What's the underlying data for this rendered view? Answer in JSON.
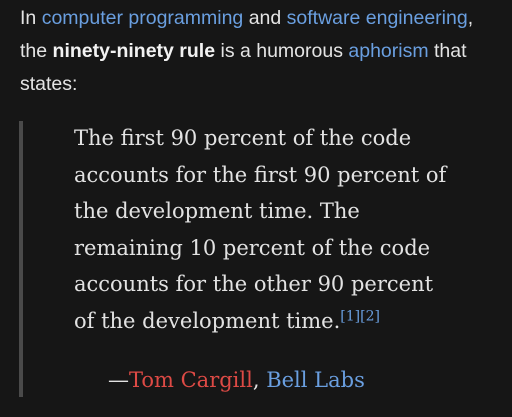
{
  "intro": {
    "t1": "In ",
    "link_programming": "computer programming",
    "t2": " and ",
    "link_software": "software engineering",
    "t3": ",",
    "t4": "the ",
    "bold_rule": "ninety-ninety rule",
    "t5": " is a humorous ",
    "link_aphorism": "aphorism",
    "t6": " that",
    "t7": "states:"
  },
  "quote": {
    "lines": [
      "The first 90 percent of the code",
      "accounts for the first 90 percent of",
      "the development time. The",
      "remaining 10 percent of the code",
      "accounts for the other 90 percent",
      "of the development time."
    ],
    "ref1": "[1]",
    "ref2": "[2]"
  },
  "attribution": {
    "dash": "—",
    "author": "Tom Cargill",
    "sep": ", ",
    "org": "Bell Labs"
  },
  "colors": {
    "background": "#161616",
    "text": "#e2e2e2",
    "link": "#6a9fe0",
    "redlink": "#dd4a45"
  }
}
